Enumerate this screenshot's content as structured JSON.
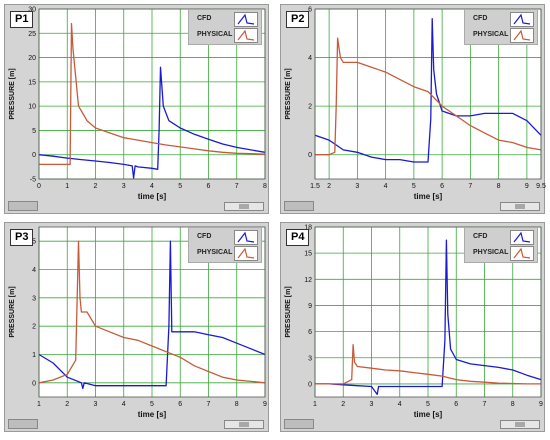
{
  "colors": {
    "cfd": "#1a1ad6",
    "physical": "#c85a3a",
    "grid": "#3aa83a",
    "plot_bg": "#ffffff"
  },
  "chart_data": [
    {
      "type": "line",
      "label": "P1",
      "xlabel": "time [s]",
      "ylabel": "PRESSURE [m]",
      "xlim": [
        0,
        8
      ],
      "ylim": [
        -5,
        30
      ],
      "xticks": [
        "0",
        "1",
        "2",
        "3",
        "4",
        "5",
        "6",
        "7",
        "8"
      ],
      "yticks": [
        "-5",
        "0",
        "5",
        "10",
        "15",
        "20",
        "25",
        "30"
      ],
      "legend": [
        "CFD",
        "PHYSICAL"
      ],
      "series": [
        {
          "name": "CFD",
          "x": [
            0,
            0.5,
            1,
            1.5,
            2,
            2.5,
            3,
            3.3,
            3.35,
            3.4,
            3.5,
            4,
            4.2,
            4.25,
            4.3,
            4.4,
            4.6,
            5,
            5.5,
            6,
            6.5,
            7,
            7.5,
            8
          ],
          "y": [
            0,
            -0.3,
            -0.7,
            -1,
            -1.3,
            -1.6,
            -2,
            -2.3,
            -4.8,
            -2.3,
            -2.5,
            -2.8,
            -3,
            5,
            18,
            10,
            7,
            5.5,
            4.2,
            3.2,
            2.2,
            1.5,
            1,
            0.5
          ]
        },
        {
          "name": "PHYSICAL",
          "x": [
            0,
            0.5,
            1,
            1.1,
            1.15,
            1.2,
            1.3,
            1.4,
            1.5,
            1.7,
            2,
            2.5,
            3,
            3.5,
            4,
            4.5,
            5,
            5.5,
            6,
            6.5,
            7,
            7.5,
            8
          ],
          "y": [
            -2,
            -2,
            -2,
            -2,
            27,
            22,
            16,
            10,
            9,
            7,
            5.5,
            4.5,
            3.5,
            3,
            2.5,
            2,
            1.6,
            1.2,
            0.8,
            0.5,
            0.3,
            0.2,
            0.1
          ]
        }
      ]
    },
    {
      "type": "line",
      "label": "P2",
      "xlabel": "time [s]",
      "ylabel": "PRESSURE [m]",
      "xlim": [
        1.5,
        9.5
      ],
      "ylim": [
        -1,
        6
      ],
      "xticks": [
        "1.5",
        "2",
        "3",
        "4",
        "5",
        "6",
        "7",
        "8",
        "9",
        "9.5"
      ],
      "yticks": [
        "0",
        "2",
        "4",
        "6"
      ],
      "legend": [
        "CFD",
        "PHYSICAL"
      ],
      "series": [
        {
          "name": "CFD",
          "x": [
            1.5,
            2,
            2.5,
            3,
            3.5,
            4,
            4.5,
            5,
            5.5,
            5.6,
            5.65,
            5.7,
            5.8,
            6,
            6.5,
            7,
            7.5,
            8,
            8.5,
            9,
            9.5
          ],
          "y": [
            0.8,
            0.6,
            0.2,
            0.1,
            -0.1,
            -0.2,
            -0.2,
            -0.3,
            -0.3,
            1.5,
            5.6,
            3.5,
            2.5,
            1.8,
            1.6,
            1.6,
            1.7,
            1.7,
            1.7,
            1.4,
            0.8
          ]
        },
        {
          "name": "PHYSICAL",
          "x": [
            1.5,
            2,
            2.2,
            2.25,
            2.3,
            2.4,
            2.5,
            3,
            3.5,
            4,
            4.5,
            5,
            5.5,
            6,
            6.5,
            7,
            7.5,
            8,
            8.5,
            9,
            9.5
          ],
          "y": [
            0,
            0,
            0.1,
            2,
            4.8,
            4,
            3.8,
            3.8,
            3.6,
            3.4,
            3.1,
            2.8,
            2.6,
            2,
            1.6,
            1.2,
            0.9,
            0.6,
            0.5,
            0.3,
            0.2
          ]
        }
      ]
    },
    {
      "type": "line",
      "label": "P3",
      "xlabel": "time [s]",
      "ylabel": "PRESSURE [m]",
      "xlim": [
        1,
        9
      ],
      "ylim": [
        -0.5,
        5.5
      ],
      "xticks": [
        "1",
        "2",
        "3",
        "4",
        "5",
        "6",
        "7",
        "8",
        "9"
      ],
      "yticks": [
        "0",
        "1",
        "2",
        "3",
        "4",
        "5"
      ],
      "legend": [
        "CFD",
        "PHYSICAL"
      ],
      "series": [
        {
          "name": "CFD",
          "x": [
            1,
            1.5,
            2,
            2.5,
            2.55,
            2.6,
            3,
            3.5,
            4,
            4.5,
            5,
            5.5,
            5.6,
            5.65,
            5.7,
            5.8,
            6,
            6.5,
            7,
            7.5,
            8,
            8.5,
            9
          ],
          "y": [
            1,
            0.7,
            0.2,
            0,
            -0.2,
            0,
            -0.1,
            -0.1,
            -0.1,
            -0.1,
            -0.1,
            -0.1,
            2,
            5,
            1.8,
            1.8,
            1.8,
            1.8,
            1.7,
            1.6,
            1.4,
            1.2,
            1
          ]
        },
        {
          "name": "PHYSICAL",
          "x": [
            1,
            1.5,
            2,
            2.3,
            2.4,
            2.45,
            2.5,
            2.7,
            3,
            3.5,
            4,
            4.5,
            5,
            5.5,
            6,
            6.5,
            7,
            7.5,
            8,
            8.5,
            9
          ],
          "y": [
            0,
            0.1,
            0.3,
            0.8,
            5,
            3,
            2.5,
            2.5,
            2,
            1.8,
            1.6,
            1.5,
            1.3,
            1.1,
            0.9,
            0.6,
            0.4,
            0.2,
            0.1,
            0.05,
            0
          ]
        }
      ]
    },
    {
      "type": "line",
      "label": "P4",
      "xlabel": "time [s]",
      "ylabel": "PRESSURE [m]",
      "xlim": [
        1,
        9
      ],
      "ylim": [
        -1.5,
        18
      ],
      "xticks": [
        "1",
        "2",
        "3",
        "4",
        "5",
        "6",
        "7",
        "8",
        "9"
      ],
      "yticks": [
        "0",
        "3",
        "6",
        "9",
        "12",
        "15",
        "18"
      ],
      "legend": [
        "CFD",
        "PHYSICAL"
      ],
      "series": [
        {
          "name": "CFD",
          "x": [
            1,
            1.5,
            2,
            2.5,
            3,
            3.2,
            3.25,
            3.3,
            3.5,
            4,
            4.5,
            5,
            5.5,
            5.6,
            5.65,
            5.7,
            5.8,
            6,
            6.5,
            7,
            7.5,
            8,
            8.5,
            9
          ],
          "y": [
            0,
            0,
            -0.1,
            -0.2,
            -0.3,
            -1.2,
            -0.3,
            -0.3,
            -0.3,
            -0.3,
            -0.3,
            -0.3,
            -0.3,
            5,
            16.5,
            8,
            4,
            2.8,
            2.3,
            2.1,
            1.9,
            1.6,
            1,
            0.5
          ]
        },
        {
          "name": "PHYSICAL",
          "x": [
            1,
            1.5,
            2,
            2.3,
            2.35,
            2.4,
            2.5,
            3,
            3.5,
            4,
            4.5,
            5,
            5.5,
            6,
            6.5,
            7,
            7.5,
            8,
            8.5,
            9
          ],
          "y": [
            0,
            0,
            0,
            0.5,
            4.5,
            2.5,
            2,
            1.8,
            1.6,
            1.5,
            1.3,
            1.1,
            0.9,
            0.5,
            0.3,
            0.2,
            0.1,
            0.05,
            0,
            0
          ]
        }
      ]
    }
  ]
}
